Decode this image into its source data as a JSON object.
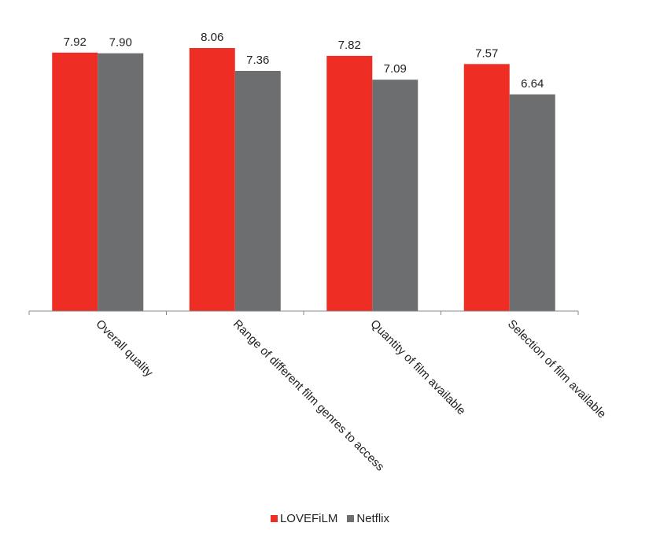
{
  "chart_data": {
    "type": "bar",
    "categories": [
      "Overall quality",
      "Range of different film genres to access",
      "Quantity of film available",
      "Selection of film available"
    ],
    "series": [
      {
        "name": "LOVEFiLM",
        "values": [
          7.92,
          8.06,
          7.82,
          7.57
        ],
        "labels": [
          "7.92",
          "8.06",
          "7.82",
          "7.57"
        ],
        "color": "#ee2e24"
      },
      {
        "name": "Netflix",
        "values": [
          7.9,
          7.36,
          7.09,
          6.64
        ],
        "labels": [
          "7.90",
          "7.36",
          "7.09",
          "6.64"
        ],
        "color": "#6d6e70"
      }
    ],
    "ylim": [
      0,
      8.06
    ],
    "grid": false,
    "legend": "bottom"
  }
}
